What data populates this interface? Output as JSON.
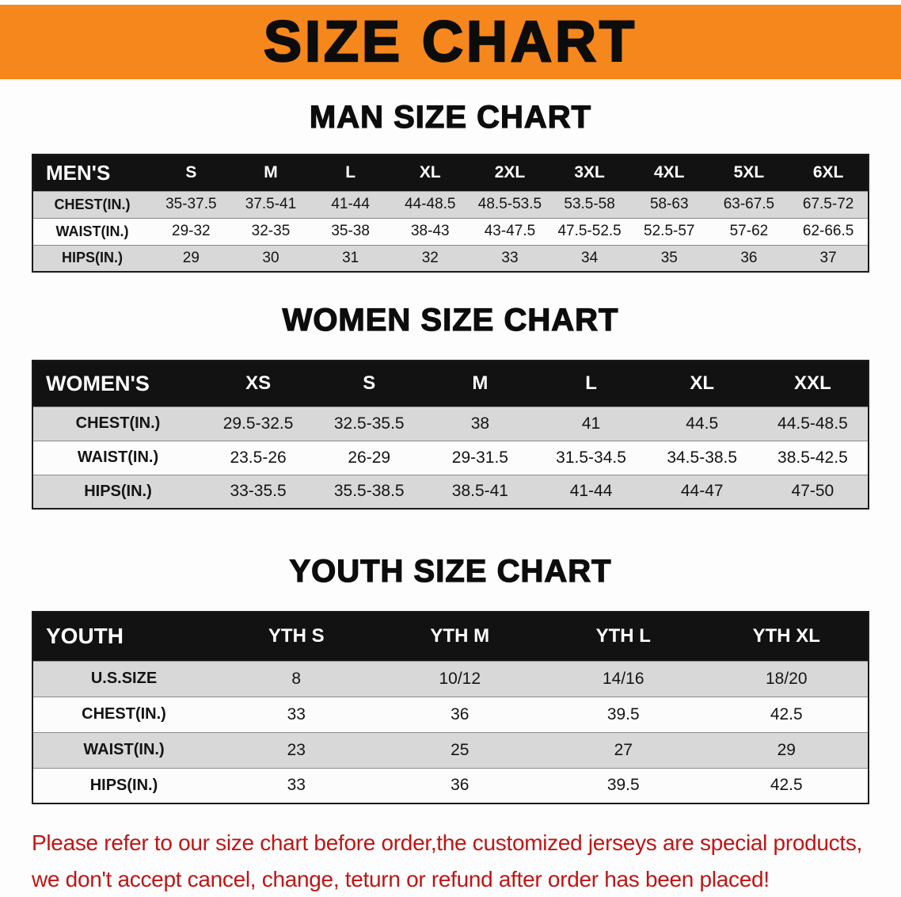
{
  "banner": {
    "title": "SIZE CHART"
  },
  "sections": {
    "men": {
      "heading": "MAN SIZE CHART",
      "table": {
        "header": [
          "MEN'S",
          "S",
          "M",
          "L",
          "XL",
          "2XL",
          "3XL",
          "4XL",
          "5XL",
          "6XL"
        ],
        "rows": [
          [
            "CHEST(IN.)",
            "35-37.5",
            "37.5-41",
            "41-44",
            "44-48.5",
            "48.5-53.5",
            "53.5-58",
            "58-63",
            "63-67.5",
            "67.5-72"
          ],
          [
            "WAIST(IN.)",
            "29-32",
            "32-35",
            "35-38",
            "38-43",
            "43-47.5",
            "47.5-52.5",
            "52.5-57",
            "57-62",
            "62-66.5"
          ],
          [
            "HIPS(IN.)",
            "29",
            "30",
            "31",
            "32",
            "33",
            "34",
            "35",
            "36",
            "37"
          ]
        ]
      }
    },
    "women": {
      "heading": "WOMEN SIZE CHART",
      "table": {
        "header": [
          "WOMEN'S",
          "XS",
          "S",
          "M",
          "L",
          "XL",
          "XXL"
        ],
        "rows": [
          [
            "CHEST(IN.)",
            "29.5-32.5",
            "32.5-35.5",
            "38",
            "41",
            "44.5",
            "44.5-48.5"
          ],
          [
            "WAIST(IN.)",
            "23.5-26",
            "26-29",
            "29-31.5",
            "31.5-34.5",
            "34.5-38.5",
            "38.5-42.5"
          ],
          [
            "HIPS(IN.)",
            "33-35.5",
            "35.5-38.5",
            "38.5-41",
            "41-44",
            "44-47",
            "47-50"
          ]
        ]
      }
    },
    "youth": {
      "heading": "YOUTH SIZE CHART",
      "table": {
        "header": [
          "YOUTH",
          "YTH S",
          "YTH M",
          "YTH L",
          "YTH XL"
        ],
        "rows": [
          [
            "U.S.SIZE",
            "8",
            "10/12",
            "14/16",
            "18/20"
          ],
          [
            "CHEST(IN.)",
            "33",
            "36",
            "39.5",
            "42.5"
          ],
          [
            "WAIST(IN.)",
            "23",
            "25",
            "27",
            "29"
          ],
          [
            "HIPS(IN.)",
            "33",
            "36",
            "39.5",
            "42.5"
          ]
        ]
      }
    }
  },
  "disclaimer": {
    "line1": "Please refer to our size chart before order,the customized jerseys are special products,",
    "line2": "we don't accept cancel, change, teturn or refund after order has been placed!"
  },
  "colors": {
    "banner_bg": "#F6871C",
    "table_header_bg": "#121212",
    "row_shaded": "#D8D8D8",
    "row_plain": "#FCFCFC",
    "disclaimer_color": "#C21414"
  }
}
